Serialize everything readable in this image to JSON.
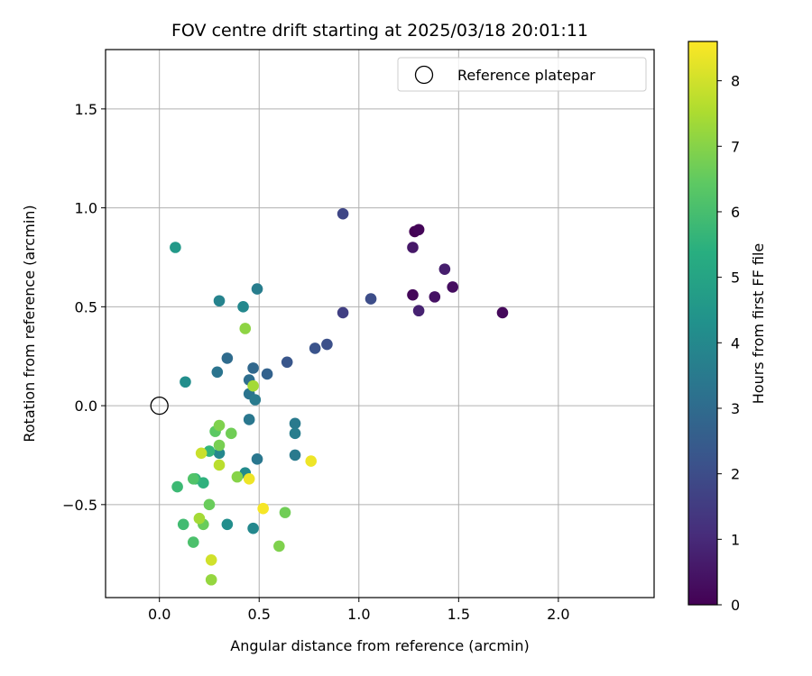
{
  "chart_data": {
    "type": "scatter",
    "title": "FOV centre drift starting at 2025/03/18 20:01:11",
    "xlabel": "Angular distance from reference (arcmin)",
    "ylabel": "Rotation from reference (arcmin)",
    "xlim": [
      -0.27,
      2.48
    ],
    "ylim": [
      -0.97,
      1.8
    ],
    "xticks": [
      0.0,
      0.5,
      1.0,
      1.5,
      2.0
    ],
    "xtick_labels": [
      "0.0",
      "0.5",
      "1.0",
      "1.5",
      "2.0"
    ],
    "yticks": [
      -0.5,
      0.0,
      0.5,
      1.0,
      1.5
    ],
    "ytick_labels": [
      "−0.5",
      "0.0",
      "0.5",
      "1.0",
      "1.5"
    ],
    "grid": true,
    "legend": {
      "placement": "top-right",
      "entries": [
        {
          "label": "Reference platepar",
          "marker": "open-circle"
        }
      ]
    },
    "reference_point": {
      "x": 0.0,
      "y": 0.0
    },
    "colorbar": {
      "label": "Hours from first FF file",
      "colormap": "viridis",
      "range": [
        0,
        8.6
      ],
      "ticks": [
        0,
        1,
        2,
        3,
        4,
        5,
        6,
        7,
        8
      ],
      "tick_labels": [
        "0",
        "1",
        "2",
        "3",
        "4",
        "5",
        "6",
        "7",
        "8"
      ]
    },
    "points": [
      {
        "x": 1.28,
        "y": 0.88,
        "hours": 0.0
      },
      {
        "x": 1.3,
        "y": 0.89,
        "hours": 0.1
      },
      {
        "x": 1.27,
        "y": 0.56,
        "hours": 0.15
      },
      {
        "x": 1.72,
        "y": 0.47,
        "hours": 0.2
      },
      {
        "x": 1.47,
        "y": 0.6,
        "hours": 0.3
      },
      {
        "x": 1.38,
        "y": 0.55,
        "hours": 0.4
      },
      {
        "x": 1.27,
        "y": 0.8,
        "hours": 0.55
      },
      {
        "x": 1.43,
        "y": 0.69,
        "hours": 0.7
      },
      {
        "x": 1.3,
        "y": 0.48,
        "hours": 0.8
      },
      {
        "x": 0.92,
        "y": 0.47,
        "hours": 1.6
      },
      {
        "x": 0.92,
        "y": 0.97,
        "hours": 1.8
      },
      {
        "x": 1.06,
        "y": 0.54,
        "hours": 2.0
      },
      {
        "x": 0.84,
        "y": 0.31,
        "hours": 2.1
      },
      {
        "x": 0.78,
        "y": 0.29,
        "hours": 2.2
      },
      {
        "x": 0.64,
        "y": 0.22,
        "hours": 2.3
      },
      {
        "x": 0.54,
        "y": 0.16,
        "hours": 2.7
      },
      {
        "x": 0.47,
        "y": 0.19,
        "hours": 2.9
      },
      {
        "x": 0.34,
        "y": 0.24,
        "hours": 3.0
      },
      {
        "x": 0.45,
        "y": 0.13,
        "hours": 3.1
      },
      {
        "x": 0.29,
        "y": 0.17,
        "hours": 3.3
      },
      {
        "x": 0.45,
        "y": 0.06,
        "hours": 3.3
      },
      {
        "x": 0.48,
        "y": 0.03,
        "hours": 3.5
      },
      {
        "x": 0.45,
        "y": -0.07,
        "hours": 3.4
      },
      {
        "x": 0.68,
        "y": -0.09,
        "hours": 3.5
      },
      {
        "x": 0.68,
        "y": -0.14,
        "hours": 3.6
      },
      {
        "x": 0.68,
        "y": -0.25,
        "hours": 3.5
      },
      {
        "x": 0.49,
        "y": -0.27,
        "hours": 3.4
      },
      {
        "x": 0.49,
        "y": 0.59,
        "hours": 3.6
      },
      {
        "x": 0.3,
        "y": 0.53,
        "hours": 3.8
      },
      {
        "x": 0.42,
        "y": 0.5,
        "hours": 4.0
      },
      {
        "x": 0.13,
        "y": 0.12,
        "hours": 4.2
      },
      {
        "x": 0.3,
        "y": -0.24,
        "hours": 4.0
      },
      {
        "x": 0.43,
        "y": -0.34,
        "hours": 4.1
      },
      {
        "x": 0.47,
        "y": -0.62,
        "hours": 4.0
      },
      {
        "x": 0.34,
        "y": -0.6,
        "hours": 4.2
      },
      {
        "x": 0.08,
        "y": 0.8,
        "hours": 4.6
      },
      {
        "x": 0.25,
        "y": -0.23,
        "hours": 5.6
      },
      {
        "x": 0.22,
        "y": -0.39,
        "hours": 5.5
      },
      {
        "x": 0.18,
        "y": -0.37,
        "hours": 5.6
      },
      {
        "x": 0.09,
        "y": -0.41,
        "hours": 5.8
      },
      {
        "x": 0.12,
        "y": -0.6,
        "hours": 5.9
      },
      {
        "x": 0.17,
        "y": -0.69,
        "hours": 6.1
      },
      {
        "x": 0.17,
        "y": -0.37,
        "hours": 6.2
      },
      {
        "x": 0.28,
        "y": -0.13,
        "hours": 6.4
      },
      {
        "x": 0.36,
        "y": -0.14,
        "hours": 6.7
      },
      {
        "x": 0.3,
        "y": -0.1,
        "hours": 6.9
      },
      {
        "x": 0.3,
        "y": -0.2,
        "hours": 6.8
      },
      {
        "x": 0.22,
        "y": -0.6,
        "hours": 6.6
      },
      {
        "x": 0.25,
        "y": -0.5,
        "hours": 6.6
      },
      {
        "x": 0.26,
        "y": -0.88,
        "hours": 7.2
      },
      {
        "x": 0.63,
        "y": -0.54,
        "hours": 6.7
      },
      {
        "x": 0.6,
        "y": -0.71,
        "hours": 6.9
      },
      {
        "x": 0.39,
        "y": -0.36,
        "hours": 7.0
      },
      {
        "x": 0.43,
        "y": 0.39,
        "hours": 7.1
      },
      {
        "x": 0.47,
        "y": 0.1,
        "hours": 7.4
      },
      {
        "x": 0.2,
        "y": -0.57,
        "hours": 7.4
      },
      {
        "x": 0.3,
        "y": -0.3,
        "hours": 7.7
      },
      {
        "x": 0.21,
        "y": -0.24,
        "hours": 7.9
      },
      {
        "x": 0.26,
        "y": -0.78,
        "hours": 8.0
      },
      {
        "x": 0.45,
        "y": -0.37,
        "hours": 8.4
      },
      {
        "x": 0.52,
        "y": -0.52,
        "hours": 8.5
      },
      {
        "x": 0.76,
        "y": -0.28,
        "hours": 8.4
      }
    ]
  }
}
